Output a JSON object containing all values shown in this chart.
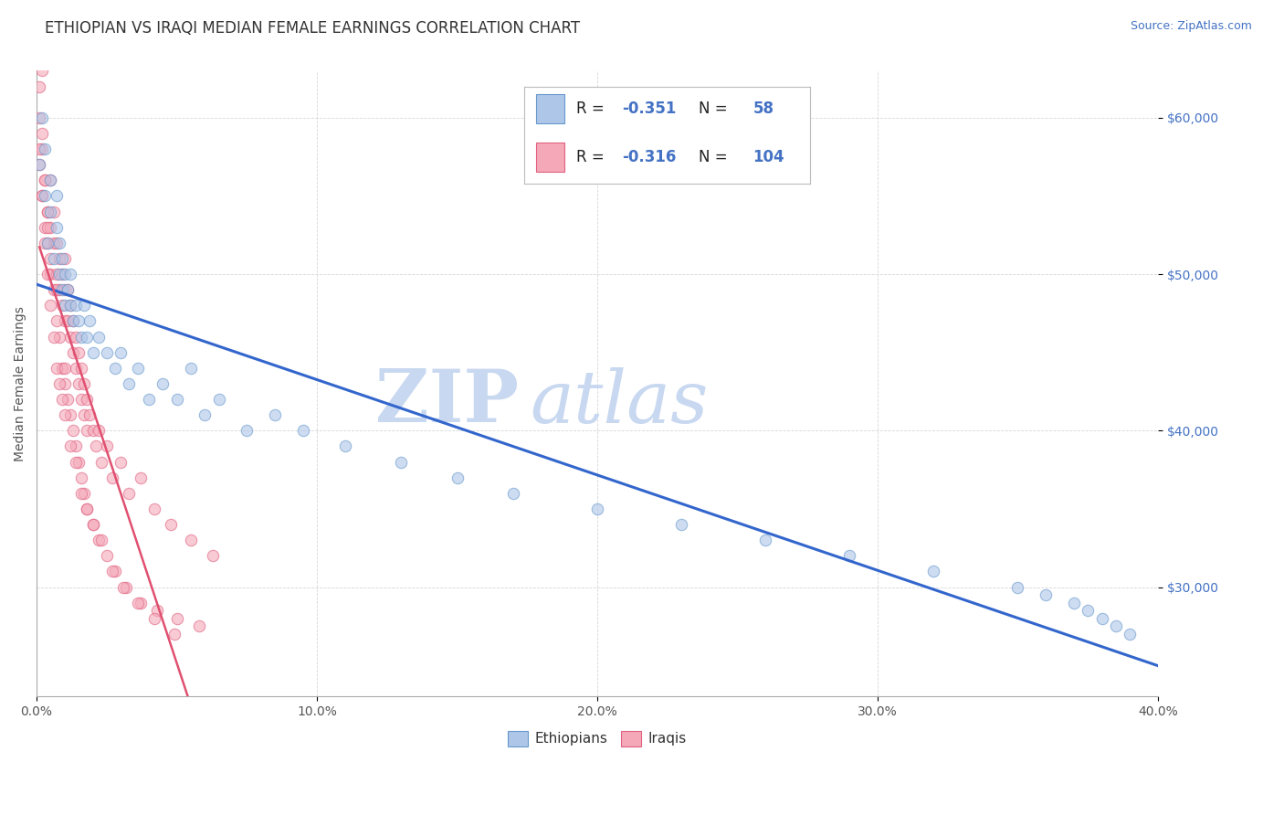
{
  "title": "ETHIOPIAN VS IRAQI MEDIAN FEMALE EARNINGS CORRELATION CHART",
  "source_text": "Source: ZipAtlas.com",
  "ylabel": "Median Female Earnings",
  "xlim": [
    0.0,
    0.4
  ],
  "ylim": [
    23000,
    63000
  ],
  "xtick_labels": [
    "0.0%",
    "10.0%",
    "20.0%",
    "30.0%",
    "40.0%"
  ],
  "xtick_vals": [
    0.0,
    0.1,
    0.2,
    0.3,
    0.4
  ],
  "ytick_vals": [
    30000,
    40000,
    50000,
    60000
  ],
  "ytick_labels": [
    "$30,000",
    "$40,000",
    "$50,000",
    "$60,000"
  ],
  "ethiopians_R": -0.351,
  "ethiopians_N": 58,
  "iraqis_R": -0.316,
  "iraqis_N": 104,
  "color_ethiopians_fill": "#aec6e8",
  "color_ethiopians_edge": "#6699cc",
  "color_iraqis_fill": "#f4a8b8",
  "color_iraqis_edge": "#e06080",
  "color_line_eth": "#3366cc",
  "color_line_irq": "#e05070",
  "scatter_alpha": 0.6,
  "scatter_size": 80,
  "watermark_zip": "ZIP",
  "watermark_atlas": "atlas",
  "watermark_color": "#c8d8f0",
  "background_color": "#ffffff",
  "title_fontsize": 12,
  "axis_label_fontsize": 10,
  "tick_fontsize": 10,
  "eth_x": [
    0.001,
    0.002,
    0.003,
    0.003,
    0.004,
    0.005,
    0.005,
    0.006,
    0.007,
    0.007,
    0.008,
    0.008,
    0.009,
    0.009,
    0.01,
    0.01,
    0.011,
    0.012,
    0.012,
    0.013,
    0.014,
    0.015,
    0.016,
    0.017,
    0.018,
    0.019,
    0.02,
    0.022,
    0.025,
    0.028,
    0.03,
    0.033,
    0.036,
    0.04,
    0.045,
    0.05,
    0.055,
    0.06,
    0.065,
    0.075,
    0.085,
    0.095,
    0.11,
    0.13,
    0.15,
    0.17,
    0.2,
    0.23,
    0.26,
    0.29,
    0.32,
    0.35,
    0.36,
    0.37,
    0.375,
    0.38,
    0.385,
    0.39
  ],
  "eth_y": [
    57000,
    60000,
    55000,
    58000,
    52000,
    54000,
    56000,
    51000,
    53000,
    55000,
    50000,
    52000,
    49000,
    51000,
    48000,
    50000,
    49000,
    48000,
    50000,
    47000,
    48000,
    47000,
    46000,
    48000,
    46000,
    47000,
    45000,
    46000,
    45000,
    44000,
    45000,
    43000,
    44000,
    42000,
    43000,
    42000,
    44000,
    41000,
    42000,
    40000,
    41000,
    40000,
    39000,
    38000,
    37000,
    36000,
    35000,
    34000,
    33000,
    32000,
    31000,
    30000,
    29500,
    29000,
    28500,
    28000,
    27500,
    27000
  ],
  "irq_x": [
    0.001,
    0.001,
    0.002,
    0.002,
    0.003,
    0.003,
    0.004,
    0.004,
    0.005,
    0.005,
    0.005,
    0.006,
    0.006,
    0.007,
    0.007,
    0.008,
    0.008,
    0.009,
    0.009,
    0.01,
    0.01,
    0.01,
    0.011,
    0.011,
    0.012,
    0.012,
    0.013,
    0.013,
    0.014,
    0.014,
    0.015,
    0.015,
    0.016,
    0.016,
    0.017,
    0.017,
    0.018,
    0.018,
    0.019,
    0.02,
    0.021,
    0.022,
    0.023,
    0.025,
    0.027,
    0.03,
    0.033,
    0.037,
    0.042,
    0.048,
    0.055,
    0.063,
    0.001,
    0.002,
    0.003,
    0.004,
    0.005,
    0.006,
    0.007,
    0.008,
    0.009,
    0.01,
    0.011,
    0.012,
    0.013,
    0.014,
    0.015,
    0.016,
    0.017,
    0.018,
    0.02,
    0.022,
    0.025,
    0.028,
    0.032,
    0.037,
    0.043,
    0.05,
    0.058,
    0.001,
    0.002,
    0.003,
    0.004,
    0.005,
    0.006,
    0.007,
    0.008,
    0.009,
    0.01,
    0.012,
    0.014,
    0.016,
    0.018,
    0.02,
    0.023,
    0.027,
    0.031,
    0.036,
    0.042,
    0.049,
    0.002,
    0.004,
    0.007,
    0.01
  ],
  "irq_y": [
    60000,
    57000,
    58000,
    55000,
    56000,
    53000,
    54000,
    52000,
    53000,
    56000,
    50000,
    52000,
    54000,
    50000,
    52000,
    49000,
    51000,
    48000,
    50000,
    47000,
    49000,
    51000,
    47000,
    49000,
    46000,
    48000,
    45000,
    47000,
    44000,
    46000,
    43000,
    45000,
    42000,
    44000,
    41000,
    43000,
    40000,
    42000,
    41000,
    40000,
    39000,
    40000,
    38000,
    39000,
    37000,
    38000,
    36000,
    37000,
    35000,
    34000,
    33000,
    32000,
    62000,
    59000,
    56000,
    53000,
    51000,
    49000,
    47000,
    46000,
    44000,
    43000,
    42000,
    41000,
    40000,
    39000,
    38000,
    37000,
    36000,
    35000,
    34000,
    33000,
    32000,
    31000,
    30000,
    29000,
    28500,
    28000,
    27500,
    58000,
    55000,
    52000,
    50000,
    48000,
    46000,
    44000,
    43000,
    42000,
    41000,
    39000,
    38000,
    36000,
    35000,
    34000,
    33000,
    31000,
    30000,
    29000,
    28000,
    27000,
    63000,
    54000,
    49000,
    44000
  ]
}
